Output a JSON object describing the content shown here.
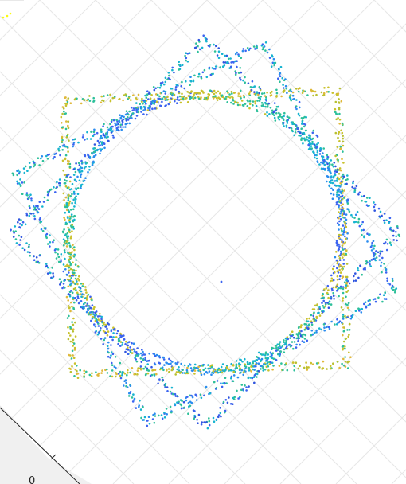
{
  "chart_data": {
    "type": "scatter",
    "title": "",
    "xlabel": "",
    "ylabel": "",
    "view": "3d",
    "grid": true,
    "colormap": "parula",
    "colors": {
      "background": "#ffffff",
      "grid": "#e6e6e6",
      "axis": "#262626",
      "color_scale": [
        "#3e26a8",
        "#3b63f0",
        "#2a8cef",
        "#16b4d0",
        "#2dc09a",
        "#7fcb5e",
        "#c9c12c",
        "#f0b93c",
        "#f9fb0e"
      ]
    },
    "tick_labels": [
      "0"
    ],
    "origin_marker": {
      "x": 0,
      "y": 0
    },
    "series": [
      {
        "shape": "circle",
        "center": [
          0,
          0
        ],
        "radius": 2.0,
        "colors": [
          "#3b63f0",
          "#2a8cef",
          "#16b4d0",
          "#2dc09a",
          "#c9c12c"
        ]
      },
      {
        "shape": "rotated-square",
        "center": [
          0,
          0
        ],
        "half_side": 2.0,
        "rotation_deg": 2,
        "colors": [
          "#c9c12c",
          "#e0b83a",
          "#b8c030",
          "#2dc09a"
        ]
      },
      {
        "shape": "rotated-square",
        "center": [
          0,
          0
        ],
        "half_side": 2.0,
        "rotation_deg": 45,
        "colors": [
          "#3b63f0",
          "#2f55e0",
          "#16b4d0",
          "#2dc09a"
        ]
      },
      {
        "shape": "rotated-square",
        "center": [
          0,
          0
        ],
        "half_side": 2.05,
        "rotation_deg": 28,
        "colors": [
          "#2a8cef",
          "#16b4d0",
          "#2dc09a",
          "#3b63f0"
        ]
      }
    ]
  }
}
